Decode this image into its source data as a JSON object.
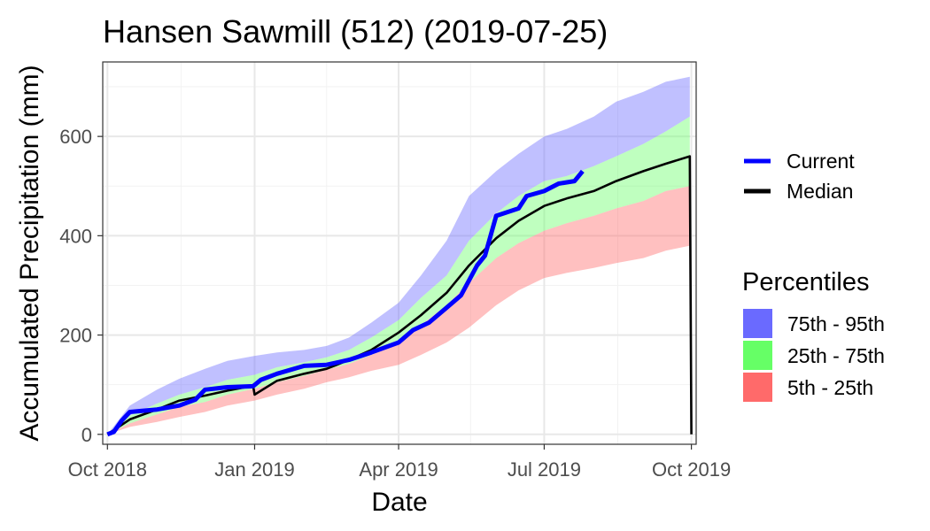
{
  "chart_data": {
    "type": "area",
    "title": "Hansen Sawmill (512) (2019-07-25)",
    "xlabel": "Date",
    "ylabel": "Accumulated Precipitation (mm)",
    "xlim": [
      "2018-10-01",
      "2019-10-01"
    ],
    "ylim": [
      -20,
      750
    ],
    "x_ticks": [
      "2018-10-01",
      "2019-01-01",
      "2019-04-01",
      "2019-07-01",
      "2019-10-01"
    ],
    "x_tick_labels": [
      "Oct 2018",
      "Jan 2019",
      "Apr 2019",
      "Jul 2019",
      "Oct 2019"
    ],
    "y_ticks": [
      0,
      200,
      400,
      600
    ],
    "y_tick_labels": [
      "0",
      "200",
      "400",
      "600"
    ],
    "grid": true,
    "legend_position": "right",
    "legend": {
      "lines": [
        {
          "name": "Current",
          "color": "#0000ff"
        },
        {
          "name": "Median",
          "color": "#000000"
        }
      ],
      "fills_title": "Percentiles",
      "fills": [
        {
          "name": "75th - 95th",
          "color": "#6a6aff"
        },
        {
          "name": "25th - 75th",
          "color": "#66ff66"
        },
        {
          "name": "5th - 25th",
          "color": "#ff6a6a"
        }
      ]
    },
    "bands": {
      "x": [
        "2018-10-01",
        "2018-10-15",
        "2018-11-01",
        "2018-11-15",
        "2018-12-01",
        "2018-12-15",
        "2019-01-01",
        "2019-01-15",
        "2019-02-01",
        "2019-02-15",
        "2019-03-01",
        "2019-03-15",
        "2019-04-01",
        "2019-04-15",
        "2019-05-01",
        "2019-05-15",
        "2019-06-01",
        "2019-06-15",
        "2019-07-01",
        "2019-07-15",
        "2019-08-01",
        "2019-08-15",
        "2019-09-01",
        "2019-09-15",
        "2019-09-30"
      ],
      "p5": [
        0,
        15,
        25,
        35,
        45,
        58,
        68,
        80,
        92,
        105,
        115,
        128,
        140,
        160,
        185,
        215,
        260,
        290,
        315,
        325,
        335,
        345,
        355,
        370,
        380
      ],
      "p25": [
        0,
        22,
        40,
        55,
        65,
        80,
        92,
        105,
        118,
        130,
        142,
        160,
        185,
        220,
        260,
        305,
        355,
        385,
        410,
        425,
        440,
        455,
        470,
        490,
        500
      ],
      "p75": [
        0,
        38,
        62,
        80,
        95,
        110,
        120,
        135,
        145,
        155,
        170,
        195,
        230,
        275,
        320,
        390,
        445,
        480,
        510,
        520,
        540,
        560,
        585,
        610,
        640
      ],
      "p95": [
        0,
        58,
        90,
        112,
        132,
        148,
        158,
        165,
        170,
        178,
        195,
        225,
        265,
        320,
        390,
        480,
        530,
        565,
        600,
        615,
        640,
        670,
        690,
        710,
        720
      ]
    },
    "series": [
      {
        "name": "Median",
        "x": [
          "2018-10-01",
          "2018-10-15",
          "2018-11-01",
          "2018-11-15",
          "2018-12-01",
          "2018-12-15",
          "2018-12-31",
          "2019-01-01",
          "2019-01-15",
          "2019-02-01",
          "2019-02-15",
          "2019-03-01",
          "2019-03-15",
          "2019-04-01",
          "2019-04-15",
          "2019-05-01",
          "2019-05-15",
          "2019-06-01",
          "2019-06-15",
          "2019-07-01",
          "2019-07-15",
          "2019-08-01",
          "2019-08-15",
          "2019-09-01",
          "2019-09-15",
          "2019-09-30",
          "2019-10-01"
        ],
        "values": [
          0,
          30,
          50,
          68,
          78,
          88,
          98,
          80,
          108,
          122,
          132,
          150,
          170,
          205,
          240,
          285,
          340,
          395,
          430,
          460,
          475,
          490,
          510,
          530,
          545,
          560,
          0
        ]
      },
      {
        "name": "Current",
        "x": [
          "2018-10-01",
          "2018-10-05",
          "2018-10-10",
          "2018-10-15",
          "2018-11-01",
          "2018-11-15",
          "2018-11-25",
          "2018-12-01",
          "2018-12-15",
          "2018-12-31",
          "2019-01-05",
          "2019-01-15",
          "2019-02-01",
          "2019-02-15",
          "2019-03-01",
          "2019-03-15",
          "2019-04-01",
          "2019-04-10",
          "2019-04-20",
          "2019-05-01",
          "2019-05-10",
          "2019-05-20",
          "2019-05-25",
          "2019-06-01",
          "2019-06-15",
          "2019-06-20",
          "2019-07-01",
          "2019-07-10",
          "2019-07-20",
          "2019-07-25"
        ],
        "values": [
          0,
          5,
          28,
          45,
          50,
          58,
          70,
          90,
          95,
          97,
          110,
          122,
          138,
          140,
          150,
          165,
          185,
          210,
          225,
          255,
          280,
          340,
          360,
          440,
          455,
          480,
          490,
          505,
          510,
          530
        ]
      }
    ]
  }
}
